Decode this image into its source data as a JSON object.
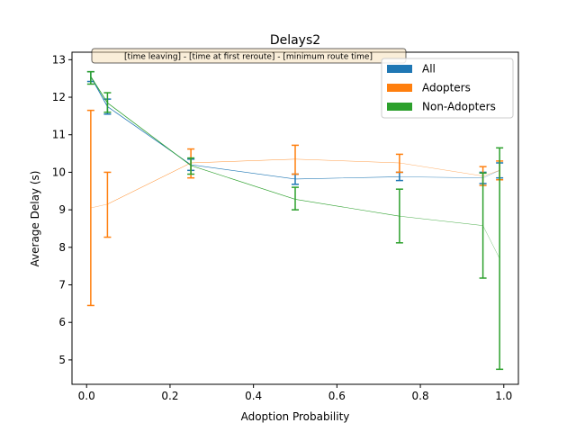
{
  "chart_data": {
    "type": "line",
    "title": "Delays2",
    "xlabel": "Adoption Probability",
    "ylabel": "Average Delay (s)",
    "xlim": [
      -0.035,
      1.035
    ],
    "ylim": [
      4.35,
      13.2
    ],
    "xticks": [
      0.0,
      0.2,
      0.4,
      0.6,
      0.8,
      1.0
    ],
    "xtick_labels": [
      "0.0",
      "0.2",
      "0.4",
      "0.6",
      "0.8",
      "1.0"
    ],
    "yticks": [
      5,
      6,
      7,
      8,
      9,
      10,
      11,
      12,
      13
    ],
    "ytick_labels": [
      "5",
      "6",
      "7",
      "8",
      "9",
      "10",
      "11",
      "12",
      "13"
    ],
    "grid": false,
    "legend_position": "top-right",
    "annotation": "[time leaving] - [time at first reroute] - [minimum route time]",
    "series": [
      {
        "name": "All",
        "color": "#1f77b4",
        "x": [
          0.01,
          0.05,
          0.25,
          0.5,
          0.75,
          0.95,
          0.99
        ],
        "y": [
          12.55,
          11.75,
          10.2,
          9.82,
          9.88,
          9.85,
          10.05
        ],
        "err_low": [
          12.42,
          11.55,
          10.05,
          9.68,
          9.78,
          9.7,
          9.85
        ],
        "err_high": [
          12.68,
          11.95,
          10.35,
          9.95,
          10.0,
          10.0,
          10.25
        ]
      },
      {
        "name": "Adopters",
        "color": "#ff7f0e",
        "x": [
          0.01,
          0.05,
          0.25,
          0.5,
          0.75,
          0.95,
          0.99
        ],
        "y": [
          9.05,
          9.15,
          10.25,
          10.35,
          10.25,
          9.9,
          10.05
        ],
        "err_low": [
          6.45,
          8.27,
          9.85,
          9.95,
          10.0,
          9.65,
          9.8
        ],
        "err_high": [
          11.65,
          10.0,
          10.62,
          10.72,
          10.48,
          10.15,
          10.3
        ]
      },
      {
        "name": "Non-Adopters",
        "color": "#2ca02c",
        "x": [
          0.01,
          0.05,
          0.25,
          0.5,
          0.75,
          0.95,
          0.99
        ],
        "y": [
          12.55,
          11.85,
          10.18,
          9.28,
          8.83,
          8.58,
          7.7
        ],
        "err_low": [
          12.35,
          11.6,
          9.95,
          9.0,
          8.12,
          7.18,
          4.75
        ],
        "err_high": [
          12.68,
          12.12,
          10.38,
          9.6,
          9.55,
          9.98,
          10.65
        ]
      }
    ]
  }
}
